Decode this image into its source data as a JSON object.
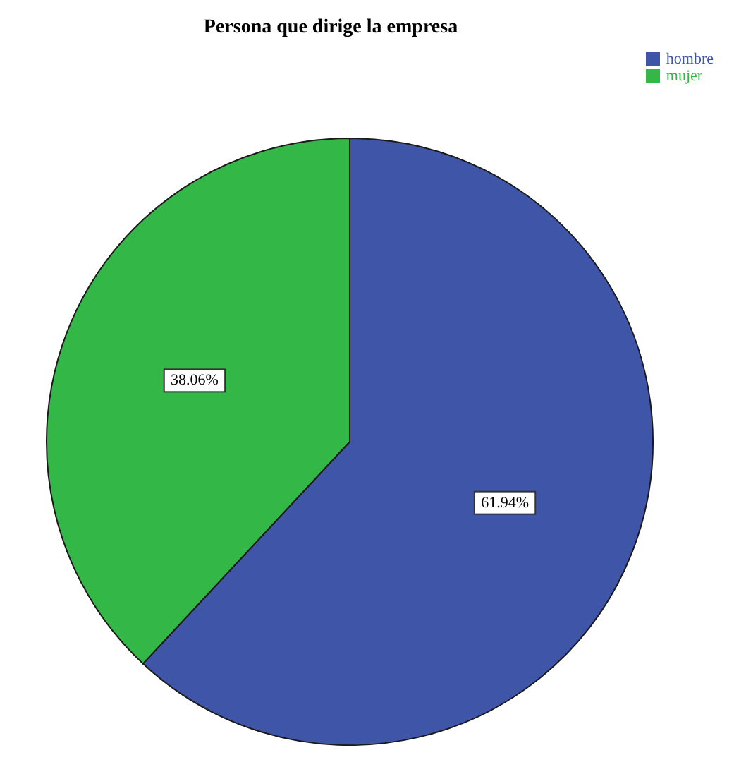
{
  "chart_data": {
    "type": "pie",
    "title": "Persona que dirige la empresa",
    "categories": [
      "hombre",
      "mujer"
    ],
    "values": [
      61.94,
      38.06
    ],
    "colors": [
      "#3f55a8",
      "#33b848"
    ],
    "value_labels": [
      "61.94%",
      "38.06%"
    ],
    "legend": "top right"
  }
}
